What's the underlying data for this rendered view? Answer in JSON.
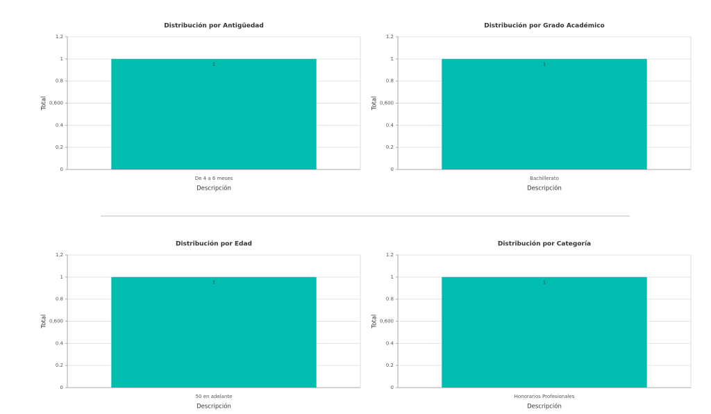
{
  "chart_data": [
    {
      "type": "bar",
      "title": "Distribución por Antigüedad",
      "x_label": "Descripción",
      "y_label": "Total",
      "categories": [
        "De 4 a 6 meses"
      ],
      "values": [
        1
      ],
      "color": "#00bdb0",
      "ylim": [
        0,
        1.2
      ],
      "yticks": [
        0,
        0.2,
        0.4,
        {
          "value": 0.6,
          "label": "0,600"
        },
        0.8,
        1,
        1.2
      ],
      "grid": true
    },
    {
      "type": "bar",
      "title": "Distribución por Grado Académico",
      "x_label": "Descripción",
      "y_label": "Total",
      "categories": [
        "Bachillerato"
      ],
      "values": [
        1
      ],
      "color": "#00bdb0",
      "ylim": [
        0,
        1.2
      ],
      "yticks": [
        0,
        0.2,
        0.4,
        {
          "value": 0.6,
          "label": "0,600"
        },
        0.8,
        1,
        1.2
      ],
      "grid": true
    },
    {
      "type": "bar",
      "title": "Distribución por Edad",
      "x_label": "Descripción",
      "y_label": "Total",
      "categories": [
        "50 en adelante"
      ],
      "values": [
        1
      ],
      "color": "#00bdb0",
      "ylim": [
        0,
        1.2
      ],
      "yticks": [
        0,
        0.2,
        0.4,
        {
          "value": 0.6,
          "label": "0,600"
        },
        0.8,
        1,
        1.2
      ],
      "grid": true
    },
    {
      "type": "bar",
      "title": "Distribución por Categoría",
      "x_label": "Descripción",
      "y_label": "Total",
      "categories": [
        "Honorarios Profesionales"
      ],
      "values": [
        1
      ],
      "color": "#00bdb0",
      "ylim": [
        0,
        1.2
      ],
      "yticks": [
        0,
        0.2,
        0.4,
        {
          "value": 0.6,
          "label": "0,600"
        },
        0.8,
        1,
        1.2
      ],
      "grid": true
    }
  ]
}
